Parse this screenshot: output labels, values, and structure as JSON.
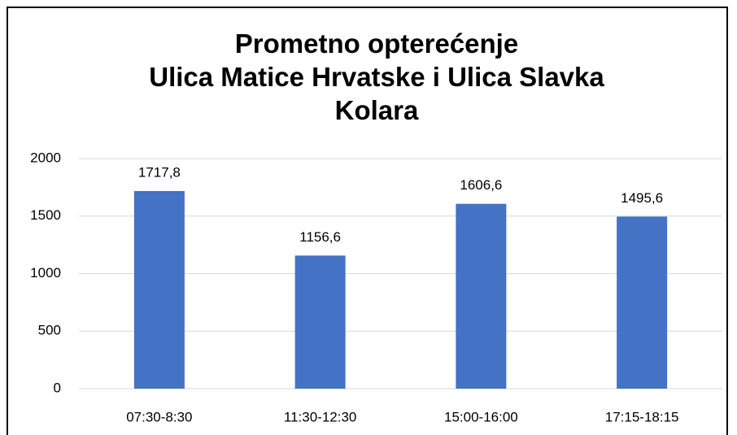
{
  "chart_data": {
    "type": "bar",
    "title": "Prometno opterećenje\nUlica Matice Hrvatske i Ulica Slavka\nKolara",
    "categories": [
      "07:30-8:30",
      "11:30-12:30",
      "15:00-16:00",
      "17:15-18:15"
    ],
    "values": [
      1717.8,
      1156.6,
      1606.6,
      1495.6
    ],
    "value_labels": [
      "1717,8",
      "1156,6",
      "1606,6",
      "1495,6"
    ],
    "color": "#4472c4",
    "ylim": [
      0,
      2000
    ],
    "yticks": [
      0,
      500,
      1000,
      1500,
      2000
    ],
    "grid": true
  }
}
